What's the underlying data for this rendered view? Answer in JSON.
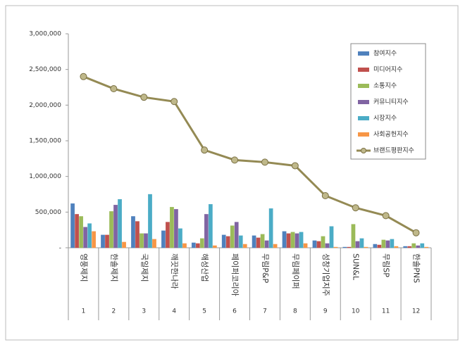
{
  "chart_data": {
    "type": "bar",
    "categories": [
      "영풍제지",
      "한솔제지",
      "국일제지",
      "깨끗한나라",
      "해성산업",
      "페이퍼코리아",
      "무림P&P",
      "무림페이퍼",
      "성창기업지주",
      "SUN&L",
      "무림SP",
      "한솔PNS"
    ],
    "category_ranks": [
      1,
      2,
      3,
      4,
      5,
      6,
      7,
      8,
      9,
      10,
      11,
      12
    ],
    "series": [
      {
        "name": "참여지수",
        "color": "#4f81bd",
        "values": [
          620000,
          180000,
          440000,
          240000,
          70000,
          180000,
          170000,
          230000,
          100000,
          10000,
          50000,
          20000
        ]
      },
      {
        "name": "미디어지수",
        "color": "#c0504d",
        "values": [
          470000,
          180000,
          370000,
          360000,
          60000,
          160000,
          140000,
          200000,
          90000,
          10000,
          40000,
          20000
        ]
      },
      {
        "name": "소통지수",
        "color": "#9bbb59",
        "values": [
          440000,
          510000,
          200000,
          570000,
          130000,
          310000,
          190000,
          220000,
          160000,
          330000,
          110000,
          60000
        ]
      },
      {
        "name": "커뮤니티지수",
        "color": "#8064a2",
        "values": [
          290000,
          600000,
          200000,
          540000,
          470000,
          360000,
          100000,
          200000,
          60000,
          90000,
          100000,
          30000
        ]
      },
      {
        "name": "시장지수",
        "color": "#4bacc6",
        "values": [
          340000,
          680000,
          750000,
          270000,
          610000,
          170000,
          550000,
          220000,
          300000,
          130000,
          120000,
          60000
        ]
      },
      {
        "name": "사회공헌지수",
        "color": "#f79646",
        "values": [
          230000,
          80000,
          120000,
          60000,
          30000,
          50000,
          50000,
          60000,
          10000,
          10000,
          20000,
          10000
        ]
      },
      {
        "name": "브랜드평판지수",
        "color": "#948a54",
        "type": "line",
        "values": [
          2400000,
          2230000,
          2110000,
          2050000,
          1370000,
          1230000,
          1200000,
          1150000,
          730000,
          560000,
          450000,
          210000
        ]
      }
    ],
    "ylim": [
      0,
      3000000
    ],
    "yticks": [
      {
        "value": 0,
        "label": "-"
      },
      {
        "value": 500000,
        "label": "500,000"
      },
      {
        "value": 1000000,
        "label": "1,000,000"
      },
      {
        "value": 1500000,
        "label": "1,500,000"
      },
      {
        "value": 2000000,
        "label": "2,000,000"
      },
      {
        "value": 2500000,
        "label": "2,500,000"
      },
      {
        "value": 3000000,
        "label": "3,000,000"
      }
    ],
    "legend": "upper right"
  }
}
